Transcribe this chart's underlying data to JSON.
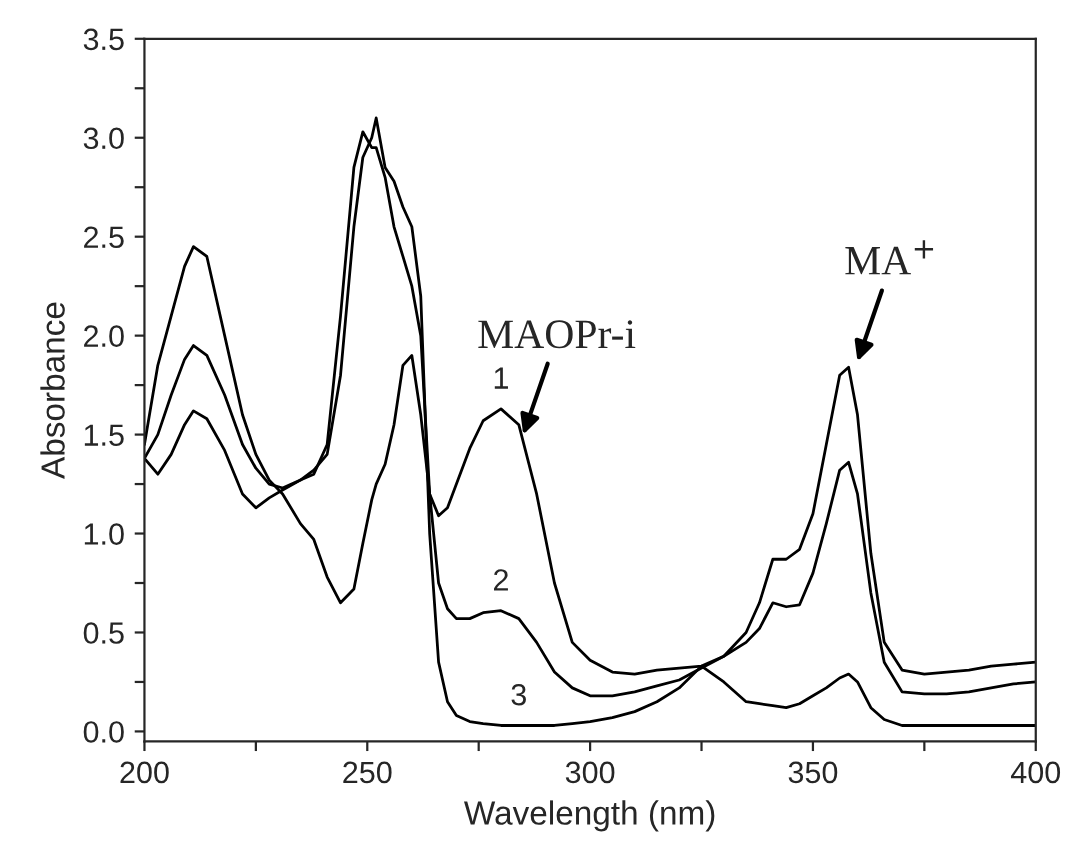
{
  "chart_data": {
    "type": "line",
    "xlabel": "Wavelength (nm)",
    "ylabel": "Absorbance",
    "x": [
      200,
      203,
      206,
      209,
      211,
      214,
      218,
      222,
      225,
      228,
      231,
      235,
      238,
      241,
      244,
      247,
      249,
      251,
      252,
      254,
      256,
      258,
      260,
      262,
      264,
      266,
      268,
      270,
      273,
      276,
      280,
      284,
      288,
      292,
      296,
      300,
      305,
      310,
      315,
      320,
      325,
      330,
      335,
      338,
      341,
      344,
      347,
      350,
      353,
      356,
      358,
      360,
      363,
      366,
      370,
      375,
      380,
      385,
      390,
      395,
      400
    ],
    "series": [
      {
        "color": "#000000",
        "values": [
          1.45,
          1.85,
          2.1,
          2.35,
          2.45,
          2.4,
          2.0,
          1.6,
          1.4,
          1.27,
          1.2,
          1.05,
          0.97,
          0.78,
          0.65,
          0.72,
          0.95,
          1.17,
          1.25,
          1.35,
          1.55,
          1.85,
          1.9,
          1.6,
          1.2,
          1.09,
          1.13,
          1.25,
          1.43,
          1.57,
          1.63,
          1.55,
          1.2,
          0.75,
          0.45,
          0.36,
          0.3,
          0.29,
          0.31,
          0.32,
          0.33,
          0.38,
          0.5,
          0.65,
          0.87,
          0.87,
          0.92,
          1.1,
          1.45,
          1.8,
          1.84,
          1.6,
          0.9,
          0.45,
          0.31,
          0.29,
          0.3,
          0.31,
          0.33,
          0.34,
          0.35
        ]
      },
      {
        "color": "#000000",
        "values": [
          1.38,
          1.3,
          1.4,
          1.55,
          1.62,
          1.58,
          1.42,
          1.2,
          1.13,
          1.18,
          1.22,
          1.27,
          1.3,
          1.45,
          2.1,
          2.85,
          3.03,
          2.95,
          2.95,
          2.8,
          2.55,
          2.4,
          2.25,
          2.0,
          1.2,
          0.75,
          0.62,
          0.57,
          0.57,
          0.6,
          0.61,
          0.57,
          0.45,
          0.3,
          0.22,
          0.18,
          0.18,
          0.2,
          0.23,
          0.26,
          0.32,
          0.38,
          0.45,
          0.52,
          0.65,
          0.63,
          0.64,
          0.8,
          1.05,
          1.32,
          1.36,
          1.2,
          0.7,
          0.35,
          0.2,
          0.19,
          0.19,
          0.2,
          0.22,
          0.24,
          0.25
        ]
      },
      {
        "color": "#000000",
        "values": [
          1.38,
          1.5,
          1.7,
          1.88,
          1.95,
          1.9,
          1.7,
          1.45,
          1.33,
          1.25,
          1.23,
          1.27,
          1.32,
          1.4,
          1.8,
          2.55,
          2.9,
          3.0,
          3.1,
          2.85,
          2.78,
          2.65,
          2.55,
          2.2,
          1.0,
          0.35,
          0.15,
          0.08,
          0.05,
          0.04,
          0.03,
          0.03,
          0.03,
          0.03,
          0.04,
          0.05,
          0.07,
          0.1,
          0.15,
          0.22,
          0.33,
          0.25,
          0.15,
          0.14,
          0.13,
          0.12,
          0.14,
          0.18,
          0.22,
          0.27,
          0.29,
          0.25,
          0.12,
          0.06,
          0.03,
          0.03,
          0.03,
          0.03,
          0.03,
          0.03,
          0.03
        ]
      }
    ],
    "annotations": [
      {
        "text": "1",
        "x": 280,
        "y": 1.63
      },
      {
        "text": "2",
        "x": 280,
        "y": 0.61
      },
      {
        "text": "3",
        "x": 284,
        "y": 0.03
      },
      {
        "text": "MAOPr-i",
        "x": 285,
        "y": 1.5
      },
      {
        "text": "MA$^{+}$",
        "x": 360,
        "y": 1.87
      }
    ],
    "xlim": [
      200,
      400
    ],
    "ylim": [
      -0.05,
      3.5
    ],
    "xticks": [
      200,
      {
        "value": 225,
        "label": null
      },
      250,
      {
        "value": 275,
        "label": null
      },
      300,
      {
        "value": 325,
        "label": null
      },
      350,
      {
        "value": 375,
        "label": null
      },
      400
    ],
    "yticks": [
      {
        "value": 0,
        "label": "0.0"
      },
      {
        "value": 0.25,
        "label": null
      },
      {
        "value": 0.5,
        "label": "0.5"
      },
      {
        "value": 0.75,
        "label": null
      },
      {
        "value": 1,
        "label": "1.0"
      },
      {
        "value": 1.25,
        "label": null
      },
      {
        "value": 1.5,
        "label": "1.5"
      },
      {
        "value": 1.75,
        "label": null
      },
      {
        "value": 2,
        "label": "2.0"
      },
      {
        "value": 2.25,
        "label": null
      },
      {
        "value": 2.5,
        "label": "2.5"
      },
      {
        "value": 2.75,
        "label": null
      },
      {
        "value": 3,
        "label": "3.0"
      },
      {
        "value": 3.25,
        "label": null
      },
      {
        "value": 3.5,
        "label": "3.5"
      }
    ],
    "grid": false,
    "legend": false,
    "marker": "none",
    "line_style": "solid"
  }
}
